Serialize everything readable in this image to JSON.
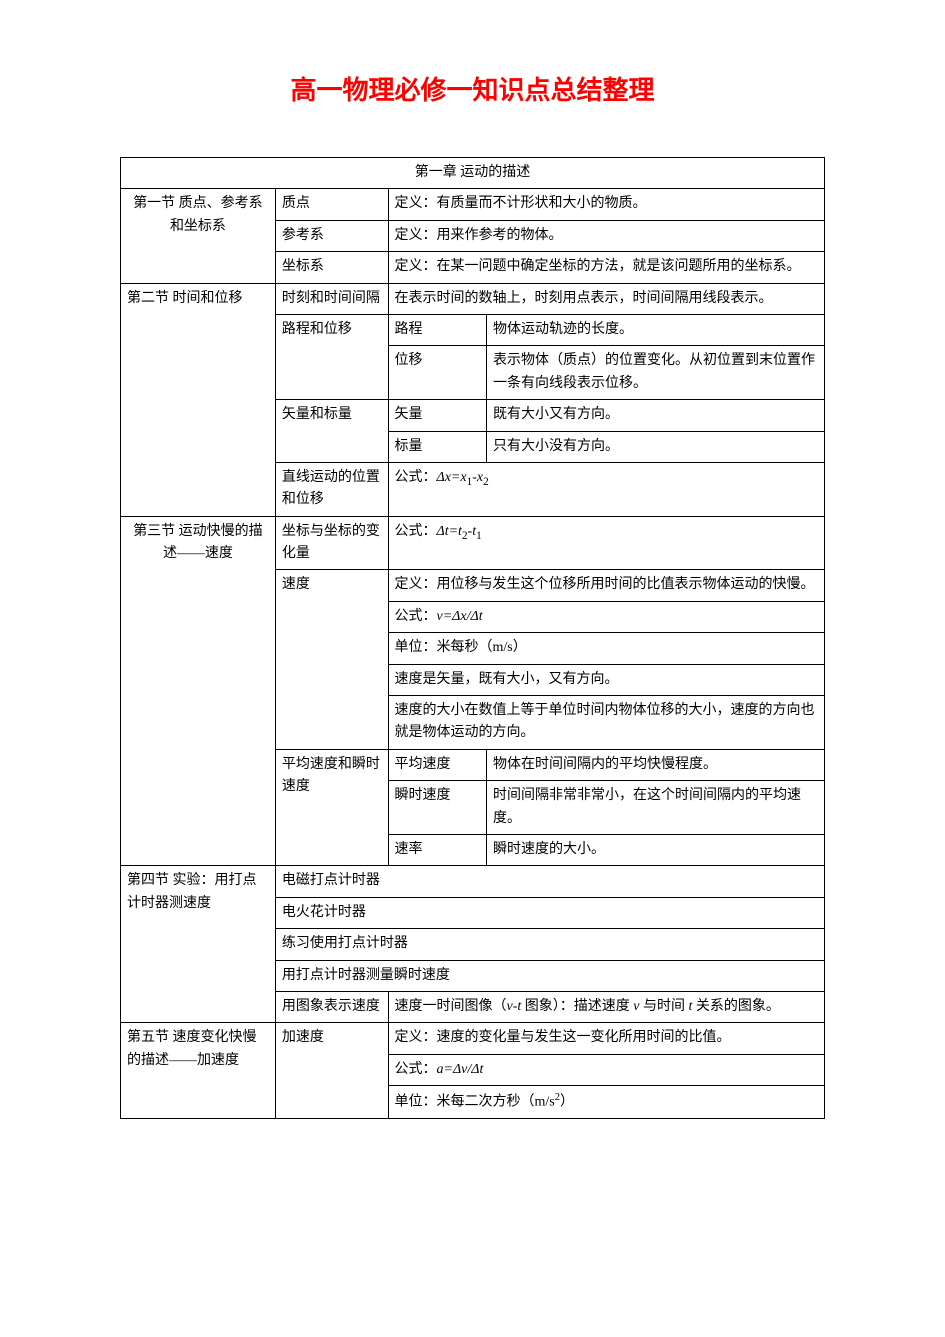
{
  "title": {
    "text": "高一物理必修一知识点总结整理",
    "color": "#ff0000",
    "fontsize": 26
  },
  "chapter": "第一章 运动的描述",
  "sections": {
    "s1": {
      "name": "第一节 质点、参考系和坐标系",
      "r1": {
        "term": "质点",
        "def": "定义：有质量而不计形状和大小的物质。"
      },
      "r2": {
        "term": "参考系",
        "def": "定义：用来作参考的物体。"
      },
      "r3": {
        "term": "坐标系",
        "def": "定义：在某一问题中确定坐标的方法，就是该问题所用的坐标系。"
      }
    },
    "s2": {
      "name": "第二节 时间和位移",
      "r1": {
        "term": "时刻和时间间隔",
        "def": "在表示时间的数轴上，时刻用点表示，时间间隔用线段表示。"
      },
      "r2": {
        "term": "路程和位移",
        "sub1": "路程",
        "def1": "物体运动轨迹的长度。",
        "sub2": "位移",
        "def2": "表示物体（质点）的位置变化。从初位置到末位置作一条有向线段表示位移。"
      },
      "r3": {
        "term": "矢量和标量",
        "sub1": "矢量",
        "def1": "既有大小又有方向。",
        "sub2": "标量",
        "def2": "只有大小没有方向。"
      },
      "r4": {
        "term": "直线运动的位置和位移",
        "def_pre": "公式："
      }
    },
    "s3": {
      "name": "第三节 运动快慢的描述——速度",
      "r1": {
        "term": "坐标与坐标的变化量",
        "def_pre": "公式："
      },
      "r2": {
        "term": "速度",
        "def1": "定义：用位移与发生这个位移所用时间的比值表示物体运动的快慢。",
        "def2_pre": "公式：",
        "def3": "单位：米每秒（m/s）",
        "def4": "速度是矢量，既有大小，又有方向。",
        "def5": "速度的大小在数值上等于单位时间内物体位移的大小，速度的方向也就是物体运动的方向。"
      },
      "r3": {
        "term": "平均速度和瞬时速度",
        "sub1": "平均速度",
        "def1": "物体在时间间隔内的平均快慢程度。",
        "sub2": "瞬时速度",
        "def2": "时间间隔非常非常小，在这个时间间隔内的平均速度。",
        "sub3": "速率",
        "def3": "瞬时速度的大小。"
      }
    },
    "s4": {
      "name": "第四节 实验：用打点计时器测速度",
      "r1": "电磁打点计时器",
      "r2": "电火花计时器",
      "r3": "练习使用打点计时器",
      "r4": "用打点计时器测量瞬时速度",
      "r5": {
        "term": "用图象表示速度",
        "def_pre": "速度一时间图像（",
        "def_mid": " 图象）：描述速度 ",
        "def_mid2": " 与时间 ",
        "def_post": " 关系的图象。"
      }
    },
    "s5": {
      "name": "第五节 速度变化快慢的描述——加速度",
      "r1": {
        "term": "加速度",
        "def1": "定义：速度的变化量与发生这一变化所用时间的比值。",
        "def2_pre": "公式：",
        "def3_pre": "单位：米每二次方秒（",
        "def3_post": "）"
      }
    }
  },
  "style": {
    "border_color": "#000000",
    "bg_color": "#ffffff",
    "body_fontsize": 14
  }
}
